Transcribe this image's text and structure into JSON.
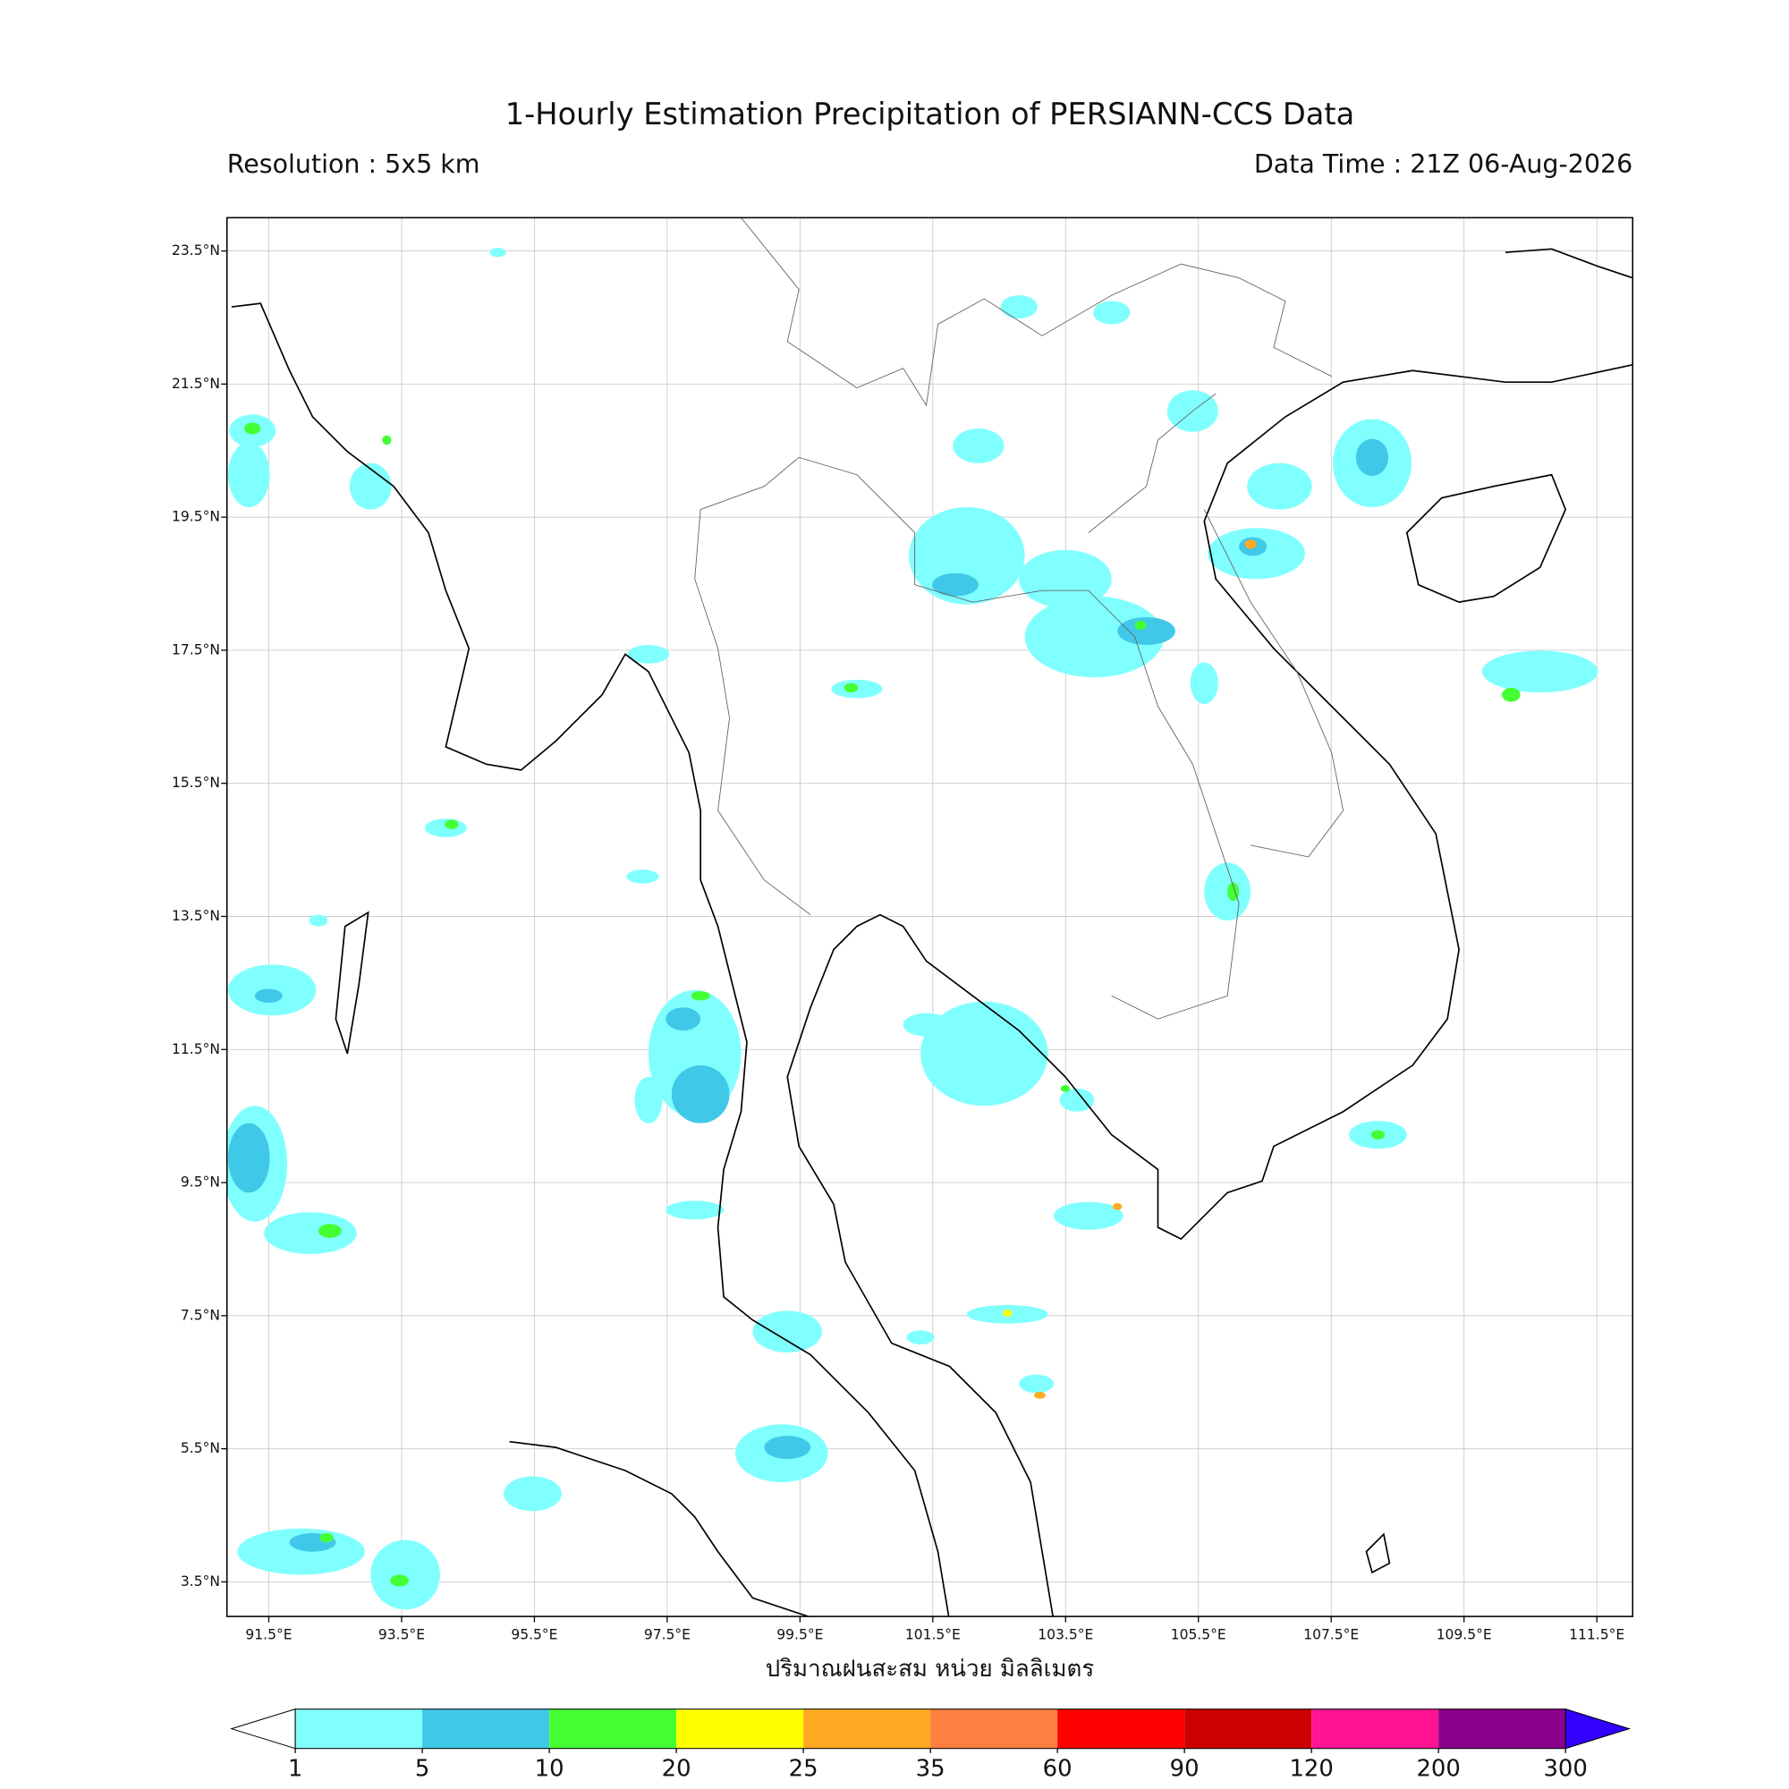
{
  "chart_data": {
    "type": "map",
    "title": "1-Hourly Estimation Precipitation of PERSIANN-CCS Data",
    "subtitle_left": "Resolution : 5x5 km",
    "subtitle_right": "Data Time : 21Z 06-Aug-2026",
    "xlabel": "ปริมาณฝนสะสม หน่วย มิลลิเมตร",
    "xlim": [
      90.87,
      112.04
    ],
    "ylim": [
      2.98,
      24.0
    ],
    "xticks": [
      {
        "value": 91.5,
        "label": "91.5°E"
      },
      {
        "value": 93.5,
        "label": "93.5°E"
      },
      {
        "value": 95.5,
        "label": "95.5°E"
      },
      {
        "value": 97.5,
        "label": "97.5°E"
      },
      {
        "value": 99.5,
        "label": "99.5°E"
      },
      {
        "value": 101.5,
        "label": "101.5°E"
      },
      {
        "value": 103.5,
        "label": "103.5°E"
      },
      {
        "value": 105.5,
        "label": "105.5°E"
      },
      {
        "value": 107.5,
        "label": "107.5°E"
      },
      {
        "value": 109.5,
        "label": "109.5°E"
      },
      {
        "value": 111.5,
        "label": "111.5°E"
      }
    ],
    "yticks": [
      {
        "value": 23.5,
        "label": "23.5°N"
      },
      {
        "value": 21.5,
        "label": "21.5°N"
      },
      {
        "value": 19.5,
        "label": "19.5°N"
      },
      {
        "value": 17.5,
        "label": "17.5°N"
      },
      {
        "value": 15.5,
        "label": "15.5°N"
      },
      {
        "value": 13.5,
        "label": "13.5°N"
      },
      {
        "value": 11.5,
        "label": "11.5°N"
      },
      {
        "value": 9.5,
        "label": "9.5°N"
      },
      {
        "value": 7.5,
        "label": "7.5°N"
      },
      {
        "value": 5.5,
        "label": "5.5°N"
      },
      {
        "value": 3.5,
        "label": "3.5°N"
      }
    ],
    "grid": true,
    "colorbar": {
      "levels": [
        1,
        5,
        10,
        20,
        25,
        35,
        60,
        90,
        120,
        200,
        300
      ],
      "colors": [
        "#80ffff",
        "#40c8e8",
        "#44ff33",
        "#ffff00",
        "#ffaa22",
        "#ff7f40",
        "#ff0000",
        "#cc0000",
        "#ff1493",
        "#8b008b"
      ],
      "under_color": "#ffffff",
      "over_color": "#3300ff"
    }
  }
}
